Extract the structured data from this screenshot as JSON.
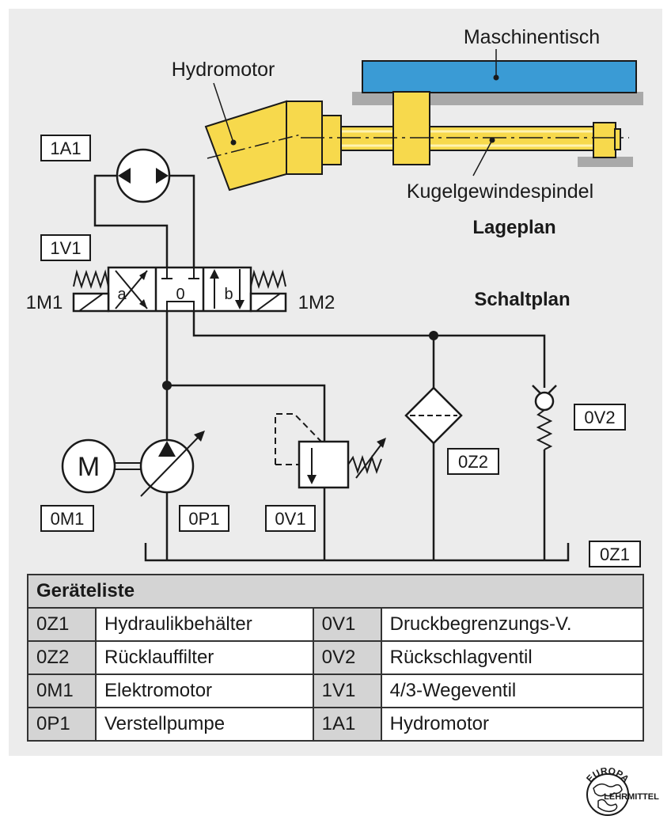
{
  "labels": {
    "maschinentisch": "Maschinentisch",
    "hydromotor": "Hydromotor",
    "kugelgewindespindel": "Kugelgewindespindel",
    "lageplan": "Lageplan",
    "schaltplan": "Schaltplan",
    "m1": "1M1",
    "m2": "1M2",
    "pos_a": "a",
    "pos_0": "0",
    "pos_b": "b",
    "motor_m": "M"
  },
  "tags": {
    "a1": "1A1",
    "v1": "1V1",
    "m01": "0M1",
    "p01": "0P1",
    "v01": "0V1",
    "z02": "0Z2",
    "v02": "0V2",
    "z01": "0Z1"
  },
  "parts_table": {
    "title": "Geräteliste",
    "rows": [
      {
        "code1": "0Z1",
        "name1": "Hydraulikbehälter",
        "code2": "0V1",
        "name2": "Druckbegrenzungs-V."
      },
      {
        "code1": "0Z2",
        "name1": "Rücklauffilter",
        "code2": "0V2",
        "name2": "Rückschlagventil"
      },
      {
        "code1": "0M1",
        "name1": "Elektromotor",
        "code2": "1V1",
        "name2": "4/3-Wegeventil"
      },
      {
        "code1": "0P1",
        "name1": "Verstellpumpe",
        "code2": "1A1",
        "name2": "Hydromotor"
      }
    ]
  },
  "logo": {
    "top": "EUROPA",
    "bottom": "LEHRMITTEL"
  },
  "colors": {
    "table_blue": "#3a9bd5",
    "part_yellow": "#f7d94c",
    "base_gray": "#a9a9a9",
    "background": "#ececec"
  }
}
